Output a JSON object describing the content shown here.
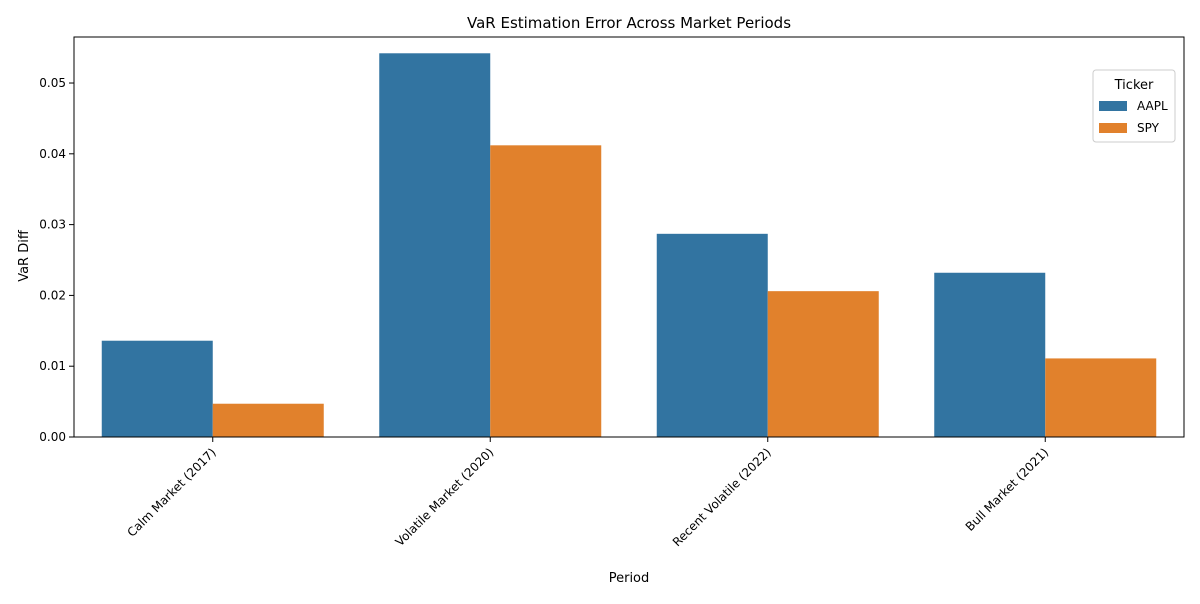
{
  "chart_data": {
    "type": "bar",
    "title": "VaR Estimation Error Across Market Periods",
    "xlabel": "Period",
    "ylabel": "VaR Diff",
    "categories": [
      "Calm Market (2017)",
      "Volatile Market (2020)",
      "Recent Volatile (2022)",
      "Bull Market (2021)"
    ],
    "series": [
      {
        "name": "AAPL",
        "color": "#3274a1",
        "values": [
          0.0136,
          0.0542,
          0.0287,
          0.0232
        ]
      },
      {
        "name": "SPY",
        "color": "#e1812c",
        "values": [
          0.0047,
          0.0412,
          0.0206,
          0.0111
        ]
      }
    ],
    "ylim": [
      0,
      0.0565
    ],
    "yticks": [
      0.0,
      0.01,
      0.02,
      0.03,
      0.04,
      0.05
    ],
    "ytick_labels": [
      "0.00",
      "0.01",
      "0.02",
      "0.03",
      "0.04",
      "0.05"
    ],
    "grid": false,
    "legend": {
      "title": "Ticker",
      "placement": "top-right"
    }
  }
}
